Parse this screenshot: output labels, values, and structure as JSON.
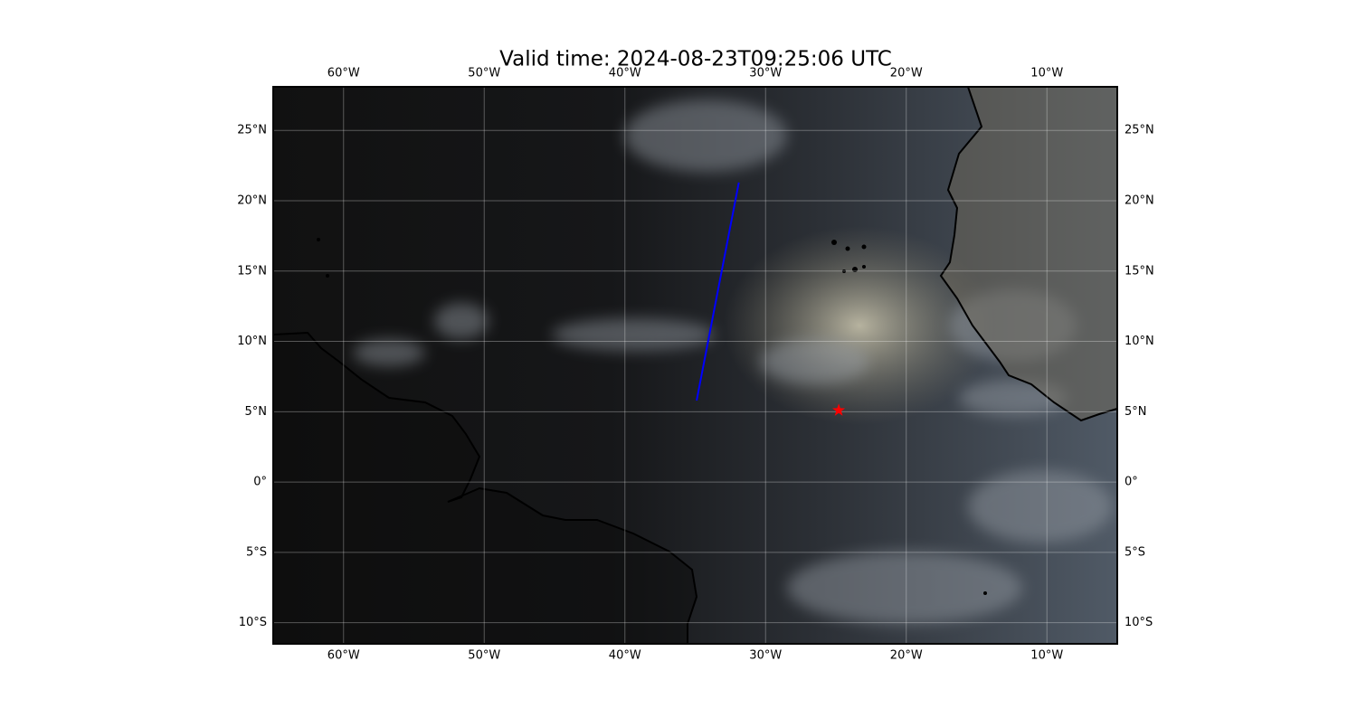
{
  "chart_data": {
    "type": "map",
    "title": "Valid time: 2024-08-23T09:25:06 UTC",
    "xlim": [
      -65,
      -5
    ],
    "ylim": [
      -11.5,
      28.1
    ],
    "xticks": [
      {
        "value": -60,
        "label": "60°W"
      },
      {
        "value": -50,
        "label": "50°W"
      },
      {
        "value": -40,
        "label": "40°W"
      },
      {
        "value": -30,
        "label": "30°W"
      },
      {
        "value": -20,
        "label": "20°W"
      },
      {
        "value": -10,
        "label": "10°W"
      }
    ],
    "yticks": [
      {
        "value": 25,
        "label": "25°N"
      },
      {
        "value": 20,
        "label": "20°N"
      },
      {
        "value": 15,
        "label": "15°N"
      },
      {
        "value": 10,
        "label": "10°N"
      },
      {
        "value": 5,
        "label": "5°N"
      },
      {
        "value": 0,
        "label": "0°"
      },
      {
        "value": -5,
        "label": "5°S"
      },
      {
        "value": -10,
        "label": "10°S"
      }
    ],
    "grid": true,
    "track": {
      "color": "#0000ff",
      "x": [
        -34.9,
        -31.9
      ],
      "y": [
        5.8,
        21.3
      ]
    },
    "marker": {
      "color": "#ff0000",
      "x": -24.8,
      "y": 5.1
    }
  }
}
